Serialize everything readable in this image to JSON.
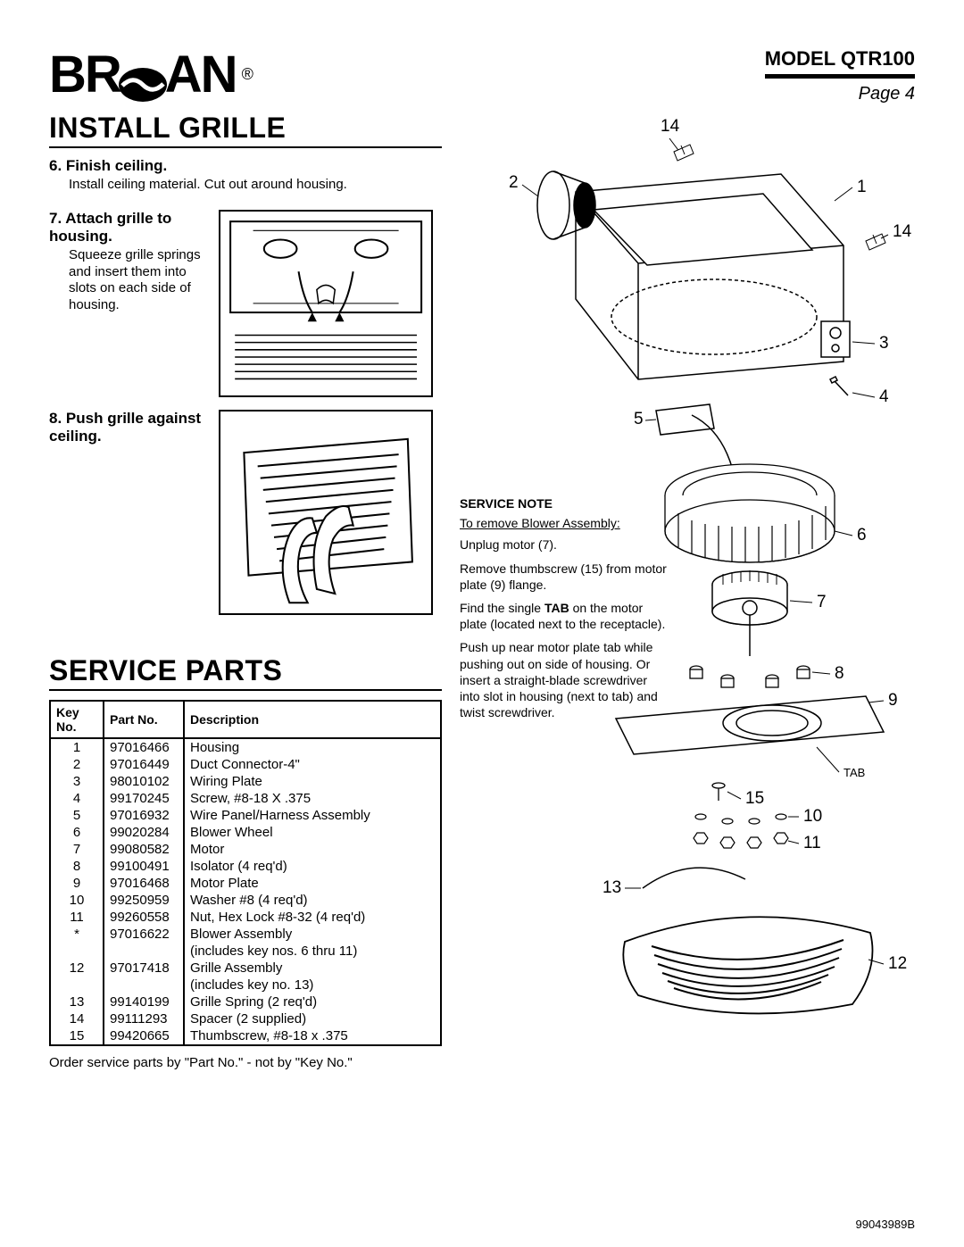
{
  "header": {
    "brand": "BROAN",
    "model": "MODEL  QTR100",
    "page": "Page 4"
  },
  "sections": {
    "install_title": "INSTALL GRILLE",
    "service_title": "SERVICE PARTS"
  },
  "steps": {
    "s6": {
      "num": "6.",
      "title": "Finish ceiling.",
      "body": "Install ceiling material. Cut out around housing."
    },
    "s7": {
      "num": "7.",
      "title": "Attach grille to housing.",
      "body": "Squeeze grille springs and insert them into slots on each side of housing."
    },
    "s8": {
      "num": "8.",
      "title": "Push grille against ceiling.",
      "body": ""
    }
  },
  "parts_table": {
    "headers": {
      "key": "Key No.",
      "part": "Part No.",
      "desc": "Description"
    },
    "rows": [
      {
        "key": "1",
        "part": "97016466",
        "desc": "Housing"
      },
      {
        "key": "2",
        "part": "97016449",
        "desc": "Duct Connector-4\""
      },
      {
        "key": "3",
        "part": "98010102",
        "desc": "Wiring Plate"
      },
      {
        "key": "4",
        "part": "99170245",
        "desc": "Screw, #8-18 X .375"
      },
      {
        "key": "5",
        "part": "97016932",
        "desc": "Wire Panel/Harness Assembly"
      },
      {
        "key": "6",
        "part": "99020284",
        "desc": "Blower Wheel"
      },
      {
        "key": "7",
        "part": "99080582",
        "desc": "Motor"
      },
      {
        "key": "8",
        "part": "99100491",
        "desc": "Isolator (4 req'd)"
      },
      {
        "key": "9",
        "part": "97016468",
        "desc": "Motor Plate"
      },
      {
        "key": "10",
        "part": "99250959",
        "desc": "Washer #8 (4 req'd)"
      },
      {
        "key": "11",
        "part": "99260558",
        "desc": "Nut, Hex Lock #8-32 (4 req'd)"
      },
      {
        "key": "*",
        "part": "97016622",
        "desc": "Blower Assembly"
      },
      {
        "key": "",
        "part": "",
        "desc": "(includes key nos. 6 thru 11)"
      },
      {
        "key": "12",
        "part": "97017418",
        "desc": "Grille Assembly"
      },
      {
        "key": "",
        "part": "",
        "desc": "(includes key no. 13)"
      },
      {
        "key": "13",
        "part": "99140199",
        "desc": "Grille Spring (2 req'd)"
      },
      {
        "key": "14",
        "part": "99111293",
        "desc": "Spacer (2 supplied)"
      },
      {
        "key": "15",
        "part": "99420665",
        "desc": "Thumbscrew, #8-18 x .375"
      }
    ]
  },
  "order_note": "Order service parts by \"Part No.\" - not by \"Key No.\"",
  "doc_number": "99043989B",
  "service_note": {
    "title": "SERVICE NOTE",
    "sub": "To remove Blower Assembly:",
    "p1": "Unplug motor (7).",
    "p2": "Remove thumbscrew (15) from motor plate (9) flange.",
    "p3": "Find the single TAB on the motor plate (located next to the receptacle).",
    "p4": "Push up near motor plate tab while pushing out on side of housing. Or insert a straight-blade screwdriver into slot in housing (next to tab) and twist screwdriver."
  },
  "callouts": {
    "c1": "1",
    "c2": "2",
    "c3": "3",
    "c4": "4",
    "c5": "5",
    "c6": "6",
    "c7": "7",
    "c8": "8",
    "c9": "9",
    "c10": "10",
    "c11": "11",
    "c12": "12",
    "c13": "13",
    "c14a": "14",
    "c14b": "14",
    "c15": "15",
    "tab": "TAB"
  },
  "colors": {
    "ink": "#000000",
    "paper": "#ffffff"
  }
}
